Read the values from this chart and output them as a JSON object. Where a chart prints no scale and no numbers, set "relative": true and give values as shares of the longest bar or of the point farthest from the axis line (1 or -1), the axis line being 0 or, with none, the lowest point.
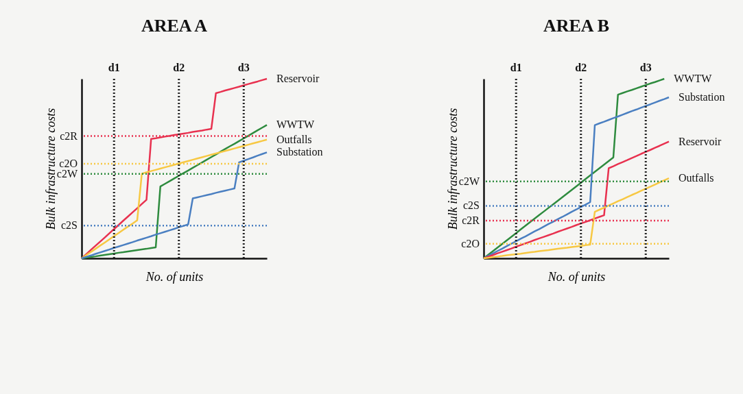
{
  "chart_data": [
    {
      "type": "line",
      "title": "AREA A",
      "xlabel": "No. of units",
      "ylabel": "Bulk infrastructure costs",
      "relative": true,
      "legend": false,
      "categories": [
        null,
        null,
        null,
        null,
        null,
        null,
        null,
        "d1",
        null,
        null,
        null,
        null,
        null,
        null,
        null,
        null,
        null,
        null,
        null,
        null,
        null,
        "d2",
        null,
        null,
        null,
        null,
        null,
        null,
        null,
        null,
        null,
        null,
        null,
        null,
        null,
        "d3",
        null,
        null,
        null,
        null,
        null
      ],
      "series": [
        {
          "name": "Reservoir",
          "color": "#e8314f",
          "values": [
            0,
            0.023,
            0.047,
            0.07,
            0.093,
            0.116,
            0.14,
            0.163,
            0.186,
            0.21,
            0.233,
            0.256,
            0.279,
            0.303,
            0.326,
            0.665,
            0.669,
            0.674,
            0.678,
            0.682,
            0.687,
            0.691,
            0.695,
            0.699,
            0.704,
            0.708,
            0.712,
            0.717,
            0.721,
            0.92,
            0.927,
            0.935,
            0.942,
            0.949,
            0.956,
            0.964,
            0.971,
            0.978,
            0.985,
            0.993,
            1
          ]
        },
        {
          "name": "WWTW",
          "color": "#2e8b3e",
          "values": [
            0,
            0.004,
            0.008,
            0.011,
            0.015,
            0.019,
            0.023,
            0.027,
            0.031,
            0.034,
            0.038,
            0.042,
            0.046,
            0.05,
            0.053,
            0.057,
            0.061,
            0.4,
            0.415,
            0.43,
            0.445,
            0.46,
            0.475,
            0.489,
            0.504,
            0.519,
            0.534,
            0.549,
            0.564,
            0.579,
            0.594,
            0.609,
            0.624,
            0.638,
            0.653,
            0.668,
            0.683,
            0.698,
            0.713,
            0.728,
            0.743
          ]
        },
        {
          "name": "Outfalls",
          "color": "#f7c843",
          "values": [
            0,
            0.018,
            0.035,
            0.053,
            0.071,
            0.088,
            0.106,
            0.124,
            0.141,
            0.159,
            0.177,
            0.194,
            0.212,
            0.472,
            0.479,
            0.486,
            0.493,
            0.5,
            0.507,
            0.514,
            0.521,
            0.528,
            0.535,
            0.542,
            0.549,
            0.556,
            0.563,
            0.57,
            0.577,
            0.584,
            0.591,
            0.598,
            0.605,
            0.612,
            0.619,
            0.626,
            0.633,
            0.64,
            0.647,
            0.654,
            0.661
          ]
        },
        {
          "name": "Substation",
          "color": "#4a7fc1",
          "values": [
            0,
            0.008,
            0.016,
            0.025,
            0.033,
            0.041,
            0.049,
            0.058,
            0.066,
            0.074,
            0.082,
            0.09,
            0.099,
            0.107,
            0.115,
            0.123,
            0.132,
            0.14,
            0.148,
            0.156,
            0.164,
            0.173,
            0.181,
            0.189,
            0.334,
            0.34,
            0.346,
            0.352,
            0.358,
            0.365,
            0.371,
            0.377,
            0.383,
            0.389,
            0.535,
            0.544,
            0.553,
            0.562,
            0.572,
            0.581,
            0.59
          ]
        }
      ],
      "ref_lines": [
        {
          "axis": "y",
          "value": 0.681,
          "label": "c2R",
          "color": "#e8314f",
          "line_style": "dotted"
        },
        {
          "axis": "y",
          "value": 0.527,
          "label": "c2O",
          "color": "#f7c843",
          "line_style": "dotted"
        },
        {
          "axis": "y",
          "value": 0.47,
          "label": "c2W",
          "color": "#2e8b3e",
          "line_style": "dotted"
        },
        {
          "axis": "y",
          "value": 0.182,
          "label": "c2S",
          "color": "#4a7fc1",
          "line_style": "dotted"
        },
        {
          "axis": "x",
          "value": "d1",
          "color": "#222222",
          "line_style": "dotted"
        },
        {
          "axis": "x",
          "value": "d2",
          "color": "#222222",
          "line_style": "dotted"
        },
        {
          "axis": "x",
          "value": "d3",
          "color": "#222222",
          "line_style": "dotted"
        }
      ]
    },
    {
      "type": "line",
      "title": "AREA B",
      "xlabel": "No. of units",
      "ylabel": "Bulk infrastructure costs",
      "relative": true,
      "legend": false,
      "categories": [
        null,
        null,
        null,
        null,
        null,
        null,
        null,
        "d1",
        null,
        null,
        null,
        null,
        null,
        null,
        null,
        null,
        null,
        null,
        null,
        null,
        null,
        "d2",
        null,
        null,
        null,
        null,
        null,
        null,
        null,
        null,
        null,
        null,
        null,
        null,
        null,
        "d3",
        null,
        null,
        null,
        null,
        null
      ],
      "series": [
        {
          "name": "WWTW",
          "color": "#2e8b3e",
          "values": [
            0,
            0.02,
            0.04,
            0.06,
            0.08,
            0.1,
            0.12,
            0.14,
            0.161,
            0.181,
            0.201,
            0.221,
            0.241,
            0.261,
            0.281,
            0.301,
            0.321,
            0.341,
            0.361,
            0.381,
            0.401,
            0.421,
            0.442,
            0.462,
            0.482,
            0.502,
            0.522,
            0.542,
            0.562,
            0.912,
            0.921,
            0.93,
            0.938,
            0.947,
            0.956,
            0.965,
            0.974,
            0.982,
            0.991,
            1,
            null
          ]
        },
        {
          "name": "Substation",
          "color": "#4a7fc1",
          "values": [
            0,
            0.014,
            0.027,
            0.041,
            0.054,
            0.068,
            0.082,
            0.095,
            0.109,
            0.122,
            0.136,
            0.15,
            0.163,
            0.177,
            0.191,
            0.204,
            0.218,
            0.231,
            0.245,
            0.259,
            0.272,
            0.286,
            0.299,
            0.313,
            0.742,
            0.752,
            0.761,
            0.771,
            0.781,
            0.79,
            0.8,
            0.81,
            0.82,
            0.829,
            0.839,
            0.849,
            0.858,
            0.868,
            0.878,
            0.887,
            0.897
          ]
        },
        {
          "name": "Reservoir",
          "color": "#e8314f",
          "values": [
            0,
            0.009,
            0.018,
            0.028,
            0.037,
            0.046,
            0.055,
            0.065,
            0.074,
            0.083,
            0.092,
            0.102,
            0.111,
            0.12,
            0.129,
            0.138,
            0.148,
            0.157,
            0.166,
            0.175,
            0.185,
            0.194,
            0.203,
            0.212,
            0.222,
            0.231,
            0.24,
            0.502,
            0.513,
            0.525,
            0.536,
            0.547,
            0.559,
            0.57,
            0.582,
            0.593,
            0.604,
            0.616,
            0.627,
            0.639,
            0.65
          ]
        },
        {
          "name": "Outfalls",
          "color": "#f7c843",
          "values": [
            0,
            0.003,
            0.007,
            0.01,
            0.013,
            0.017,
            0.02,
            0.023,
            0.026,
            0.03,
            0.033,
            0.036,
            0.04,
            0.043,
            0.046,
            0.05,
            0.053,
            0.056,
            0.059,
            0.063,
            0.066,
            0.069,
            0.073,
            0.076,
            0.259,
            0.271,
            0.282,
            0.294,
            0.306,
            0.318,
            0.329,
            0.341,
            0.353,
            0.364,
            0.376,
            0.388,
            0.399,
            0.411,
            0.423,
            0.435,
            0.446
          ]
        }
      ],
      "ref_lines": [
        {
          "axis": "y",
          "value": 0.428,
          "label": "c2W",
          "color": "#2e8b3e",
          "line_style": "dotted"
        },
        {
          "axis": "y",
          "value": 0.292,
          "label": "c2S",
          "color": "#4a7fc1",
          "line_style": "dotted"
        },
        {
          "axis": "y",
          "value": 0.21,
          "label": "c2R",
          "color": "#e8314f",
          "line_style": "dotted"
        },
        {
          "axis": "y",
          "value": 0.081,
          "label": "c2O",
          "color": "#f7c843",
          "line_style": "dotted"
        },
        {
          "axis": "x",
          "value": "d1",
          "color": "#222222",
          "line_style": "dotted"
        },
        {
          "axis": "x",
          "value": "d2",
          "color": "#222222",
          "line_style": "dotted"
        },
        {
          "axis": "x",
          "value": "d3",
          "color": "#222222",
          "line_style": "dotted"
        }
      ]
    }
  ]
}
